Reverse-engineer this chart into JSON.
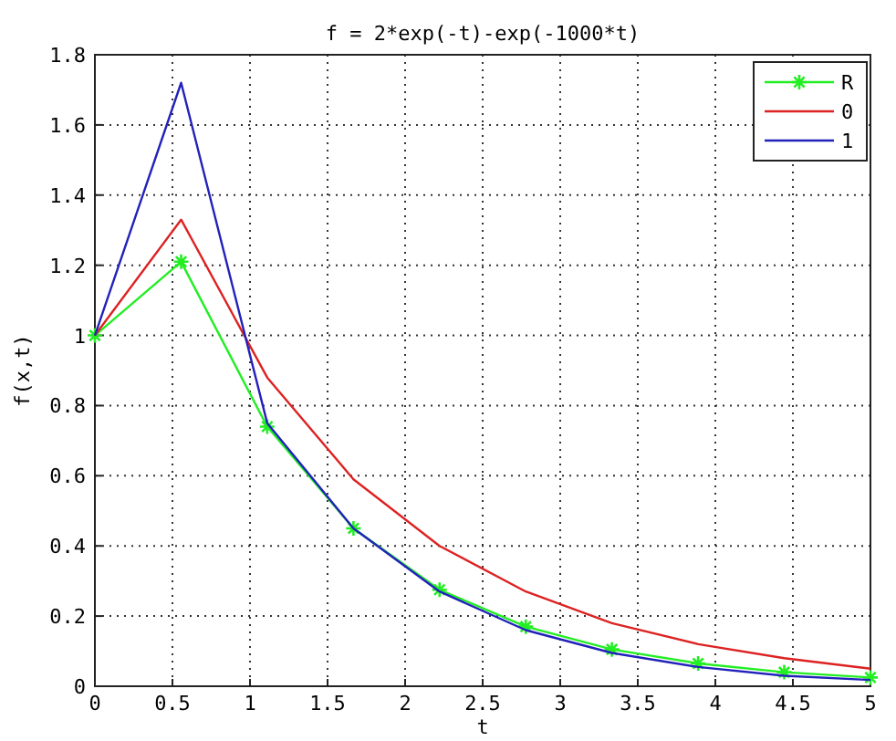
{
  "chart_data": {
    "type": "line",
    "title": "f = 2*exp(-t)-exp(-1000*t)",
    "xlabel": "t",
    "ylabel": "f(x,t)",
    "x": [
      0,
      0.556,
      1.111,
      1.667,
      2.222,
      2.778,
      3.333,
      3.889,
      4.444,
      5
    ],
    "xlim": [
      0,
      5
    ],
    "xticks": [
      0,
      0.5,
      1,
      1.5,
      2,
      2.5,
      3,
      3.5,
      4,
      4.5,
      5
    ],
    "ylim": [
      0,
      1.8
    ],
    "yticks": [
      0,
      0.2,
      0.4,
      0.6,
      0.8,
      1,
      1.2,
      1.4,
      1.6,
      1.8
    ],
    "grid": true,
    "legend": "top right",
    "line_style": "solid",
    "series": [
      {
        "name": "R",
        "color": "#22ee22",
        "marker": "cross",
        "values": [
          1,
          1.21,
          0.74,
          0.45,
          0.275,
          0.17,
          0.105,
          0.065,
          0.04,
          0.025
        ]
      },
      {
        "name": "0",
        "color": "#dd2222",
        "marker": "none",
        "values": [
          1,
          1.33,
          0.88,
          0.59,
          0.4,
          0.27,
          0.18,
          0.12,
          0.08,
          0.05
        ]
      },
      {
        "name": "1",
        "color": "#2222bb",
        "marker": "none",
        "values": [
          1,
          1.72,
          0.75,
          0.45,
          0.27,
          0.16,
          0.095,
          0.055,
          0.03,
          0.018
        ]
      }
    ]
  }
}
